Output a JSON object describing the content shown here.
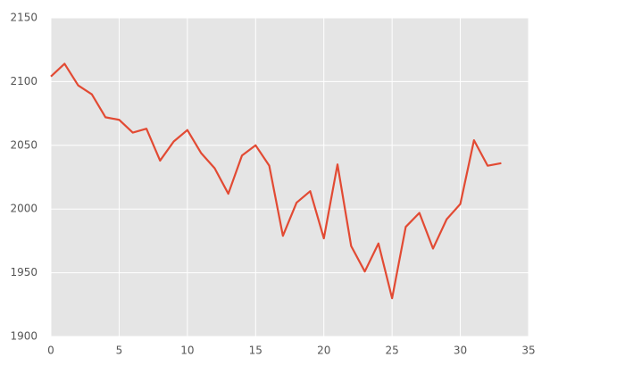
{
  "chart_data": {
    "type": "line",
    "x": [
      0,
      1,
      2,
      3,
      4,
      5,
      6,
      7,
      8,
      9,
      10,
      11,
      12,
      13,
      14,
      15,
      16,
      17,
      18,
      19,
      20,
      21,
      22,
      23,
      24,
      25,
      26,
      27,
      28,
      29,
      30,
      31,
      32,
      33
    ],
    "values": [
      2104,
      2114,
      2097,
      2090,
      2072,
      2070,
      2060,
      2063,
      2038,
      2053,
      2062,
      2044,
      2032,
      2012,
      2042,
      2050,
      2034,
      1979,
      2005,
      2014,
      1977,
      2035,
      1971,
      1951,
      1973,
      1930,
      1986,
      1997,
      1969,
      1992,
      2004,
      2054,
      2034,
      2036
    ],
    "color": "#e24a33",
    "xlim": [
      0,
      35
    ],
    "xticks": [
      0,
      5,
      10,
      15,
      20,
      25,
      30,
      35
    ],
    "ylim": [
      1900,
      2150
    ],
    "yticks": [
      1900,
      1950,
      2000,
      2050,
      2100,
      2150
    ],
    "grid": true
  }
}
